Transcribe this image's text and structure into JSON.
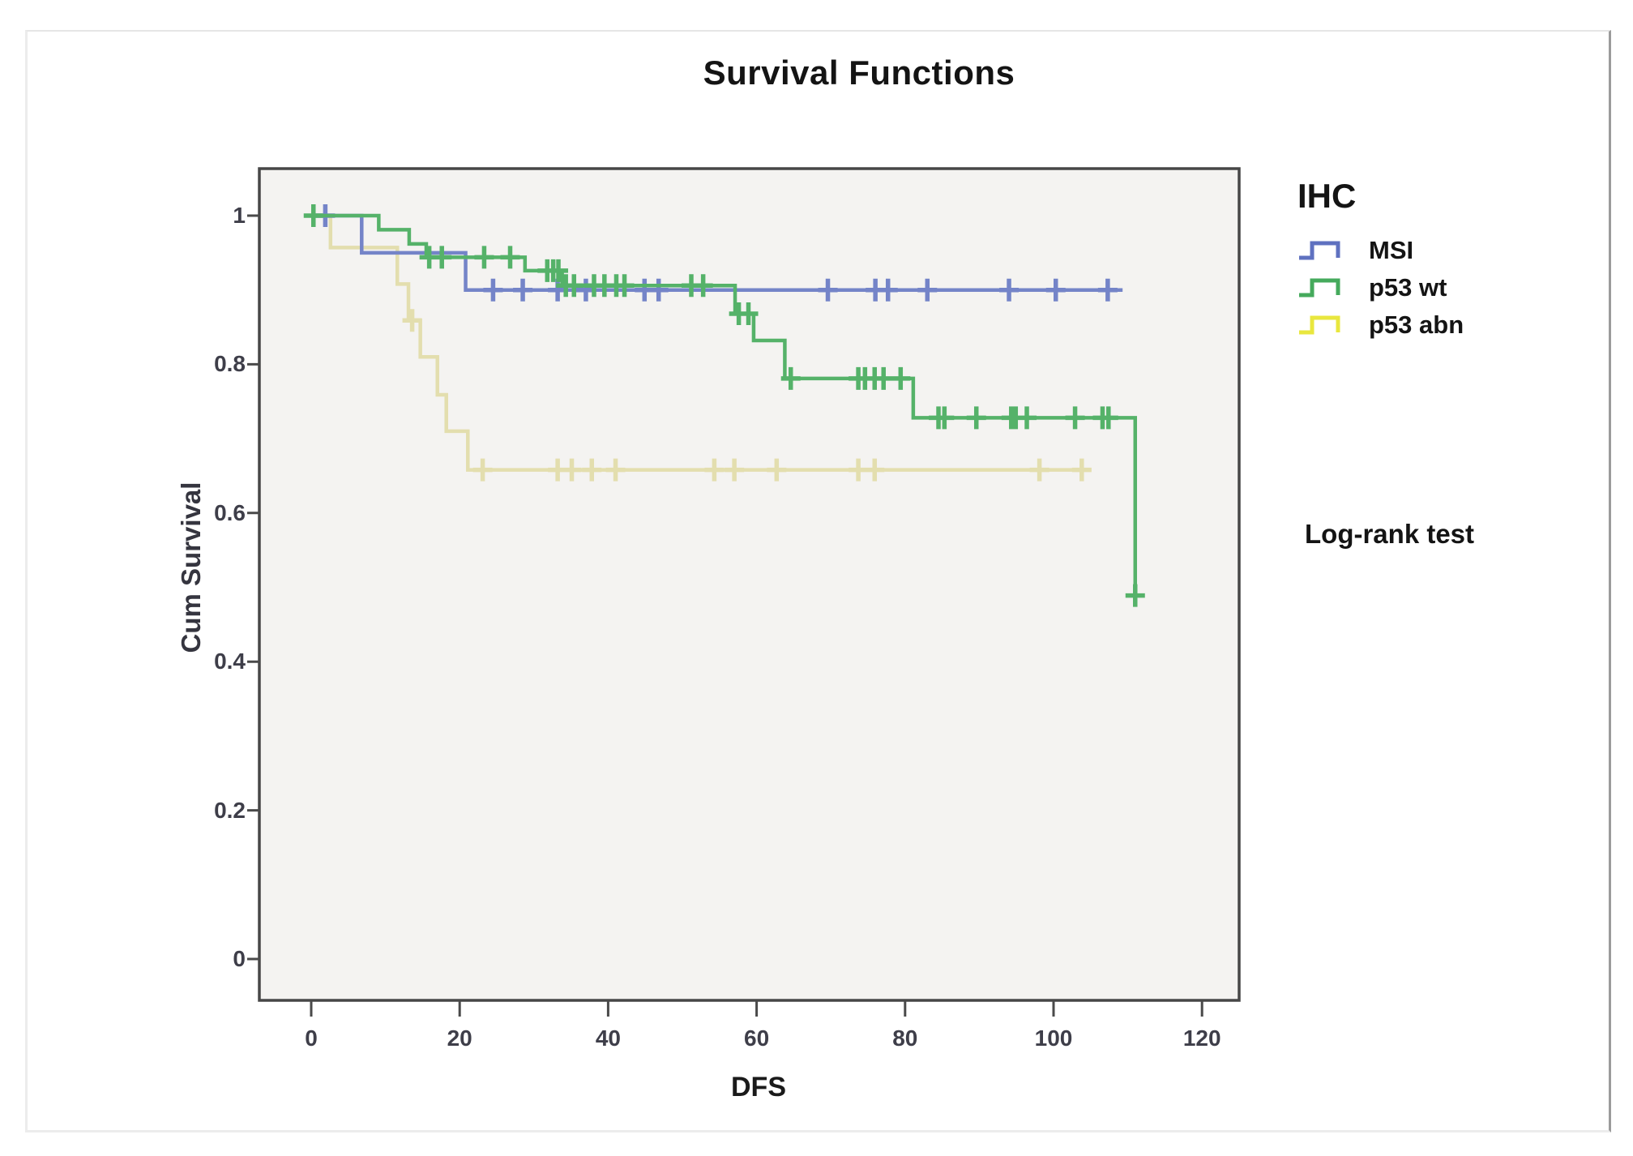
{
  "title": "Survival Functions",
  "annotation": "Log-rank test",
  "axes": {
    "x": {
      "label": "DFS",
      "ticks": [
        {
          "v": 0,
          "label": "0"
        },
        {
          "v": 20,
          "label": "20"
        },
        {
          "v": 40,
          "label": "40"
        },
        {
          "v": 60,
          "label": "60"
        },
        {
          "v": 80,
          "label": "80"
        },
        {
          "v": 100,
          "label": "100"
        },
        {
          "v": 120,
          "label": "120"
        }
      ]
    },
    "y": {
      "label": "Cum Survival",
      "ticks": [
        {
          "v": 1,
          "label": "1"
        },
        {
          "v": 0.8,
          "label": "0.8"
        },
        {
          "v": 0.6,
          "label": "0.6"
        },
        {
          "v": 0.4,
          "label": "0.4"
        },
        {
          "v": 0.2,
          "label": "0.2"
        },
        {
          "v": 0,
          "label": "0"
        }
      ]
    }
  },
  "legend": {
    "title": "IHC",
    "items": [
      {
        "label": "MSI",
        "swatch_color": "#5f71c0"
      },
      {
        "label": "p53 wt",
        "swatch_color": "#45aa5c"
      },
      {
        "label": "p53 abn",
        "swatch_color": "#e9e73e"
      }
    ]
  },
  "colors": {
    "plot_background": "#f4f3f1",
    "plot_frame": "#474747",
    "tick_mark": "#4a4a4a"
  },
  "chart_data": {
    "type": "line",
    "subtype": "kaplan-meier-step",
    "title": "Survival Functions",
    "xlabel": "DFS",
    "ylabel": "Cum Survival",
    "xlim": [
      -7,
      125
    ],
    "ylim": [
      -0.057,
      1.063
    ],
    "x_ticks": [
      0,
      20,
      40,
      60,
      80,
      100,
      120
    ],
    "y_ticks": [
      0,
      0.2,
      0.4,
      0.6,
      0.8,
      1
    ],
    "grid": false,
    "legend_position": "right",
    "series": [
      {
        "name": "p53 abn",
        "color": "#e3deae",
        "start_value": 1.0,
        "steps": [
          [
            2.6,
            0.957
          ],
          [
            11.6,
            0.908
          ],
          [
            13.1,
            0.859
          ],
          [
            14.7,
            0.81
          ],
          [
            17.0,
            0.759
          ],
          [
            18.2,
            0.71
          ],
          [
            21.1,
            0.658
          ]
        ],
        "end_t": 105.1,
        "censors": [
          [
            13.6,
            0.859
          ],
          [
            23.1,
            0.658
          ],
          [
            33.2,
            0.658
          ],
          [
            35.1,
            0.658
          ],
          [
            37.8,
            0.658
          ],
          [
            41.0,
            0.658
          ],
          [
            54.3,
            0.658
          ],
          [
            57.0,
            0.658
          ],
          [
            62.7,
            0.658
          ],
          [
            73.7,
            0.658
          ],
          [
            75.9,
            0.658
          ],
          [
            98.1,
            0.658
          ],
          [
            103.8,
            0.658
          ]
        ]
      },
      {
        "name": "MSI",
        "color": "#7484c8",
        "start_value": 1.0,
        "steps": [
          [
            6.8,
            0.95
          ],
          [
            20.8,
            0.9
          ]
        ],
        "end_t": 109.3,
        "censors": [
          [
            1.9,
            1.0
          ],
          [
            24.5,
            0.9
          ],
          [
            28.5,
            0.9
          ],
          [
            33.2,
            0.9
          ],
          [
            37.0,
            0.9
          ],
          [
            44.9,
            0.9
          ],
          [
            46.8,
            0.9
          ],
          [
            69.6,
            0.9
          ],
          [
            76.0,
            0.9
          ],
          [
            77.7,
            0.9
          ],
          [
            83.0,
            0.9
          ],
          [
            94.0,
            0.9
          ],
          [
            100.3,
            0.9
          ],
          [
            107.3,
            0.9
          ]
        ]
      },
      {
        "name": "p53 wt",
        "color": "#55b269",
        "start_value": 1.0,
        "steps": [
          [
            9.1,
            0.981
          ],
          [
            13.2,
            0.962
          ],
          [
            15.5,
            0.944
          ],
          [
            28.8,
            0.926
          ],
          [
            33.8,
            0.906
          ],
          [
            57.1,
            0.868
          ],
          [
            59.6,
            0.832
          ],
          [
            63.8,
            0.781
          ],
          [
            81.1,
            0.728
          ],
          [
            111.0,
            0.489
          ]
        ],
        "end_t": 111.0,
        "censors": [
          [
            0.3,
            1.0
          ],
          [
            15.9,
            0.944
          ],
          [
            17.6,
            0.944
          ],
          [
            23.3,
            0.944
          ],
          [
            26.8,
            0.944
          ],
          [
            31.8,
            0.926
          ],
          [
            32.6,
            0.926
          ],
          [
            33.3,
            0.926
          ],
          [
            34.3,
            0.906
          ],
          [
            35.4,
            0.906
          ],
          [
            38.1,
            0.906
          ],
          [
            39.5,
            0.906
          ],
          [
            41.1,
            0.906
          ],
          [
            42.2,
            0.906
          ],
          [
            51.2,
            0.906
          ],
          [
            52.8,
            0.906
          ],
          [
            57.6,
            0.868
          ],
          [
            58.9,
            0.868
          ],
          [
            64.6,
            0.781
          ],
          [
            73.7,
            0.781
          ],
          [
            74.6,
            0.781
          ],
          [
            75.9,
            0.781
          ],
          [
            77.1,
            0.781
          ],
          [
            79.4,
            0.781
          ],
          [
            84.5,
            0.728
          ],
          [
            85.3,
            0.728
          ],
          [
            89.6,
            0.728
          ],
          [
            94.3,
            0.728
          ],
          [
            94.9,
            0.728
          ],
          [
            96.4,
            0.728
          ],
          [
            102.9,
            0.728
          ],
          [
            106.6,
            0.728
          ],
          [
            107.4,
            0.728
          ],
          [
            111.0,
            0.489
          ]
        ]
      }
    ]
  }
}
